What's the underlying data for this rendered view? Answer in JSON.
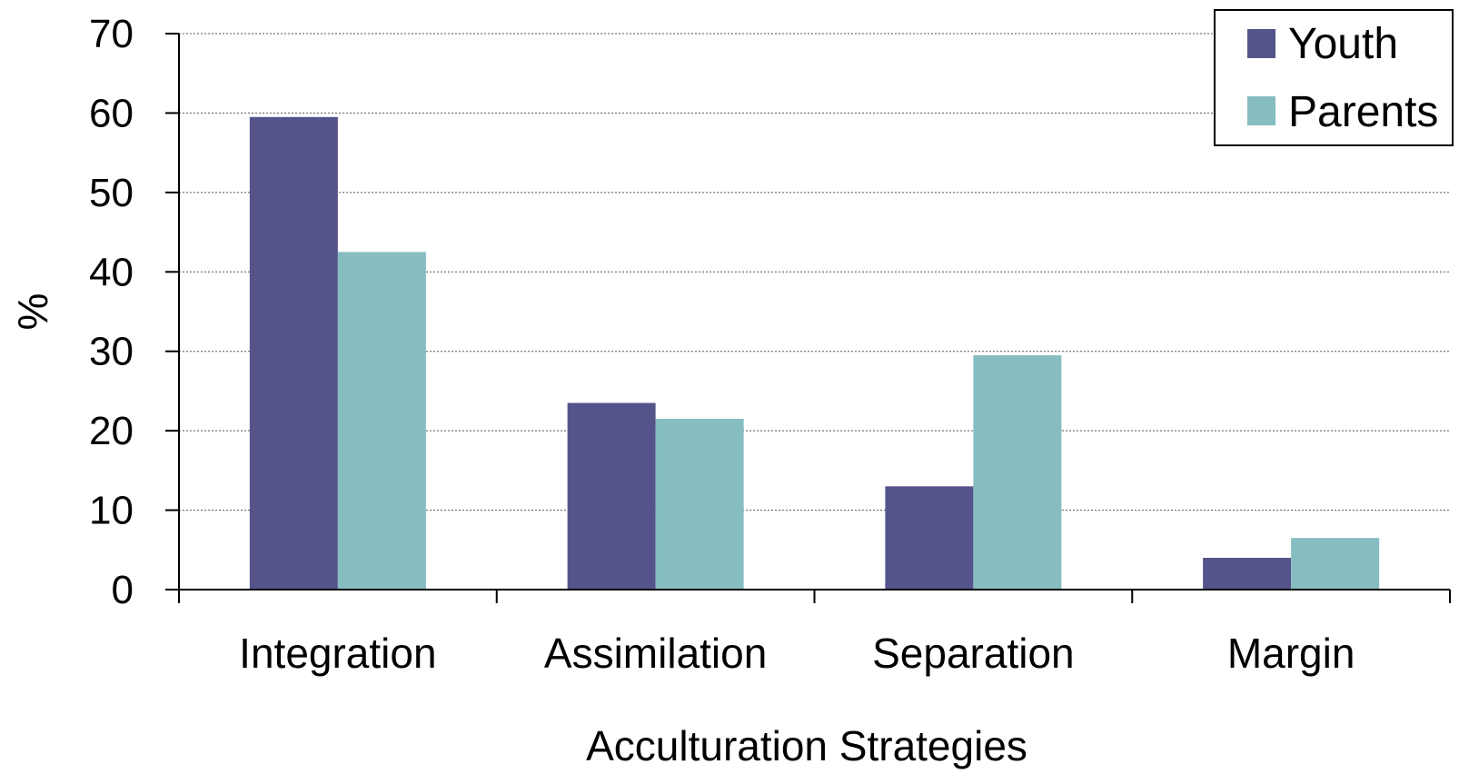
{
  "chart_data": {
    "type": "bar",
    "title": "",
    "xlabel": "Acculturation Strategies",
    "ylabel": "%",
    "ylim": [
      0,
      70
    ],
    "yticks": [
      0,
      10,
      20,
      30,
      40,
      50,
      60,
      70
    ],
    "grid": true,
    "legend_position": "top-right",
    "categories": [
      "Integration",
      "Assimilation",
      "Separation",
      "Margin"
    ],
    "series": [
      {
        "name": "Youth",
        "color": "#55548a",
        "values": [
          59.5,
          23.5,
          13,
          4
        ]
      },
      {
        "name": "Parents",
        "color": "#86bdc1",
        "values": [
          42.5,
          21.5,
          29.5,
          6.5
        ]
      }
    ]
  }
}
